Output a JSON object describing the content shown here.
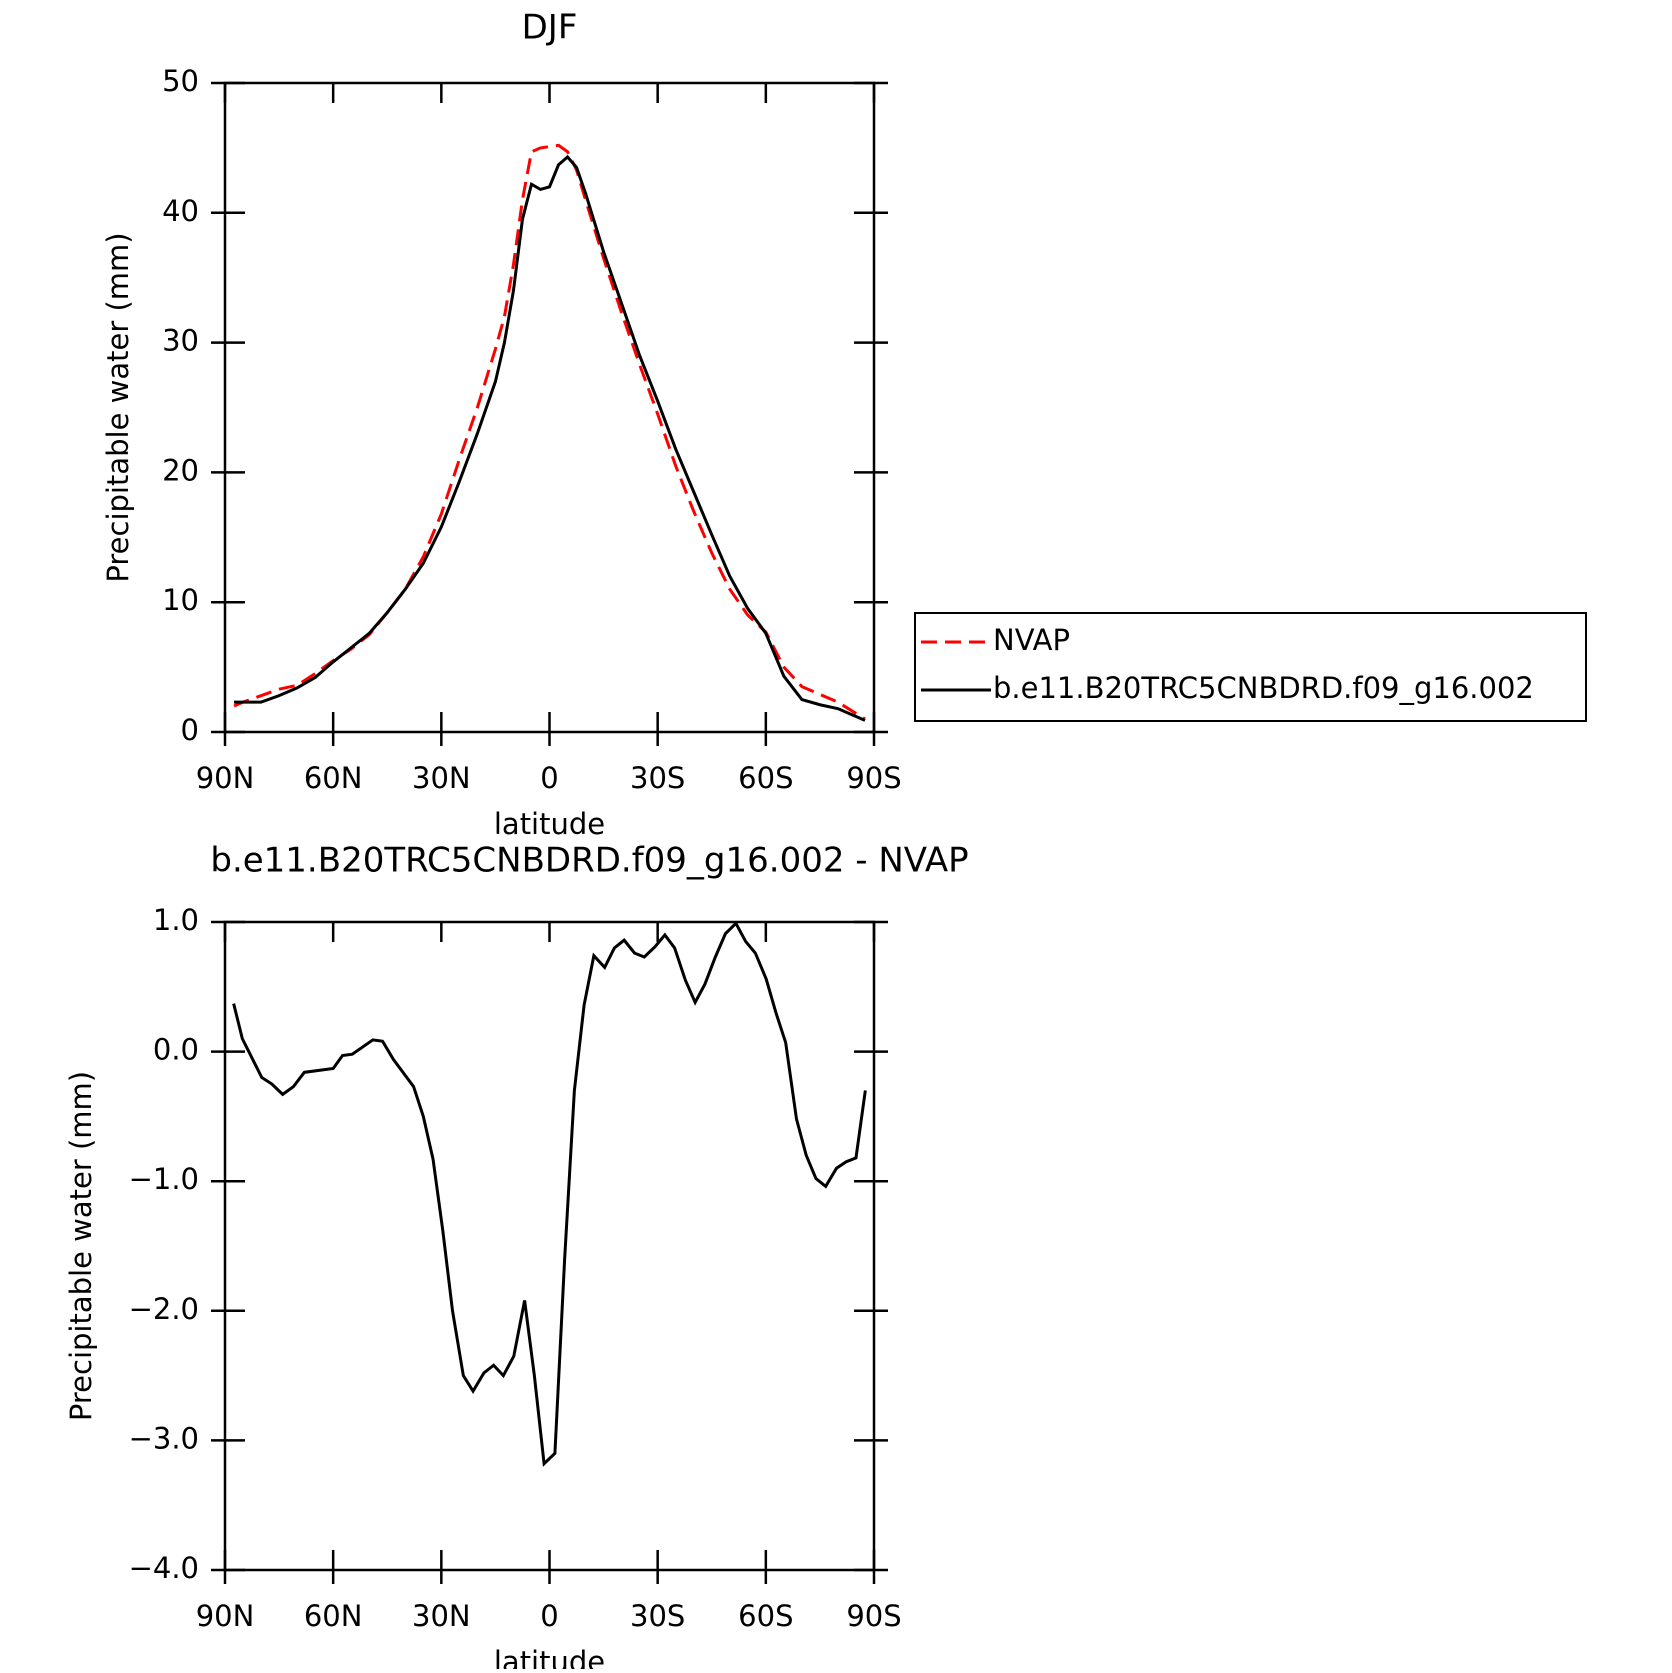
{
  "chart_data": [
    {
      "type": "line",
      "title": "DJF",
      "xlabel": "latitude",
      "ylabel": "Precipitable water (mm)",
      "xlim": [
        90,
        -90
      ],
      "xticks": [
        {
          "value": 90,
          "label": "90N"
        },
        {
          "value": 60,
          "label": "60N"
        },
        {
          "value": 30,
          "label": "30N"
        },
        0,
        {
          "value": -30,
          "label": "30S"
        },
        {
          "value": -60,
          "label": "60S"
        },
        {
          "value": -90,
          "label": "90S"
        }
      ],
      "ylim": [
        0,
        50
      ],
      "yticks": [
        0,
        10,
        20,
        30,
        40,
        50
      ],
      "legend": "outside-right",
      "x": [
        87.5,
        85,
        80,
        75,
        70,
        65,
        60,
        55,
        50,
        45,
        40,
        35,
        30,
        25,
        20,
        15,
        12.5,
        10,
        7.5,
        5,
        2.5,
        0,
        -2.5,
        -5,
        -7.5,
        -10,
        -15,
        -20,
        -25,
        -30,
        -35,
        -40,
        -45,
        -50,
        -55,
        -60,
        -65,
        -70,
        -75,
        -80,
        -87.5
      ],
      "series": [
        {
          "name": "NVAP",
          "color": "#ff0000",
          "dash": true,
          "values": [
            2.0,
            2.3,
            2.8,
            3.3,
            3.6,
            4.5,
            5.5,
            6.4,
            7.5,
            9.2,
            11.0,
            13.5,
            16.8,
            21.0,
            25.0,
            29.5,
            32.0,
            36.0,
            41.0,
            44.7,
            45.0,
            45.1,
            45.2,
            44.7,
            43.3,
            41.0,
            36.5,
            32.3,
            28.3,
            24.5,
            20.5,
            17.0,
            13.8,
            11.0,
            9.0,
            7.7,
            5.0,
            3.5,
            2.9,
            2.3,
            1.0
          ]
        },
        {
          "name": "b.e11.B20TRC5CNBDRD.f09_g16.002",
          "color": "#000000",
          "dash": false,
          "values": [
            2.3,
            2.3,
            2.3,
            2.8,
            3.4,
            4.2,
            5.4,
            6.5,
            7.6,
            9.2,
            11.0,
            13.0,
            15.8,
            19.3,
            23.0,
            27.0,
            30.0,
            34.0,
            39.5,
            42.2,
            41.8,
            42.0,
            43.7,
            44.3,
            43.5,
            41.5,
            37.0,
            33.0,
            29.0,
            25.5,
            21.8,
            18.5,
            15.2,
            12.0,
            9.5,
            7.6,
            4.3,
            2.5,
            2.1,
            1.8,
            0.9
          ]
        }
      ]
    },
    {
      "type": "line",
      "title": "b.e11.B20TRC5CNBDRD.f09_g16.002 - NVAP",
      "xlabel": "latitude",
      "ylabel": "Precipitable water (mm)",
      "xlim": [
        90,
        -90
      ],
      "xticks": [
        {
          "value": 90,
          "label": "90N"
        },
        {
          "value": 60,
          "label": "60N"
        },
        {
          "value": 30,
          "label": "30N"
        },
        0,
        {
          "value": -30,
          "label": "30S"
        },
        {
          "value": -60,
          "label": "60S"
        },
        {
          "value": -90,
          "label": "90S"
        }
      ],
      "ylim": [
        -4,
        1
      ],
      "yticks": [
        {
          "value": 1,
          "label": "1.0"
        },
        {
          "value": 0,
          "label": "0.0"
        },
        {
          "value": -1,
          "label": "−1.0"
        },
        {
          "value": -2,
          "label": "−2.0"
        },
        {
          "value": -3,
          "label": "−3.0"
        },
        {
          "value": -4,
          "label": "−4.0"
        }
      ],
      "color": "#000000",
      "x": [
        87.6,
        85.2,
        79.8,
        77,
        74,
        71,
        68,
        60,
        57.4,
        54.7,
        49,
        46.3,
        43.3,
        37.7,
        35,
        32.3,
        29.6,
        26.9,
        23.9,
        21.2,
        18.2,
        15.5,
        12.8,
        9.9,
        6.9,
        4.2,
        1.5,
        -1.5,
        -4.2,
        -6.9,
        -9.6,
        -12.3,
        -15.3,
        -18,
        -20.7,
        -23.6,
        -26.3,
        -29.3,
        -32,
        -34.7,
        -37.7,
        -40.4,
        -43.1,
        -46,
        -48.8,
        -51.7,
        -54.4,
        -57.1,
        -60.1,
        -62.8,
        -65.5,
        -68.5,
        -71.2,
        -73.9,
        -76.6,
        -79.6,
        -82.3,
        -85,
        -87.6
      ],
      "values": [
        0.37,
        0.1,
        -0.2,
        -0.25,
        -0.33,
        -0.27,
        -0.16,
        -0.13,
        -0.03,
        -0.02,
        0.09,
        0.08,
        -0.06,
        -0.27,
        -0.5,
        -0.83,
        -1.38,
        -2.0,
        -2.5,
        -2.62,
        -2.48,
        -2.42,
        -2.5,
        -2.35,
        -1.92,
        -2.5,
        -3.18,
        -3.1,
        -1.6,
        -0.3,
        0.36,
        0.74,
        0.65,
        0.8,
        0.86,
        0.76,
        0.73,
        0.81,
        0.9,
        0.8,
        0.55,
        0.38,
        0.52,
        0.73,
        0.91,
        0.99,
        0.85,
        0.76,
        0.56,
        0.3,
        0.07,
        -0.52,
        -0.8,
        -0.98,
        -1.04,
        -0.9,
        -0.85,
        -0.82,
        -0.3
      ]
    }
  ]
}
